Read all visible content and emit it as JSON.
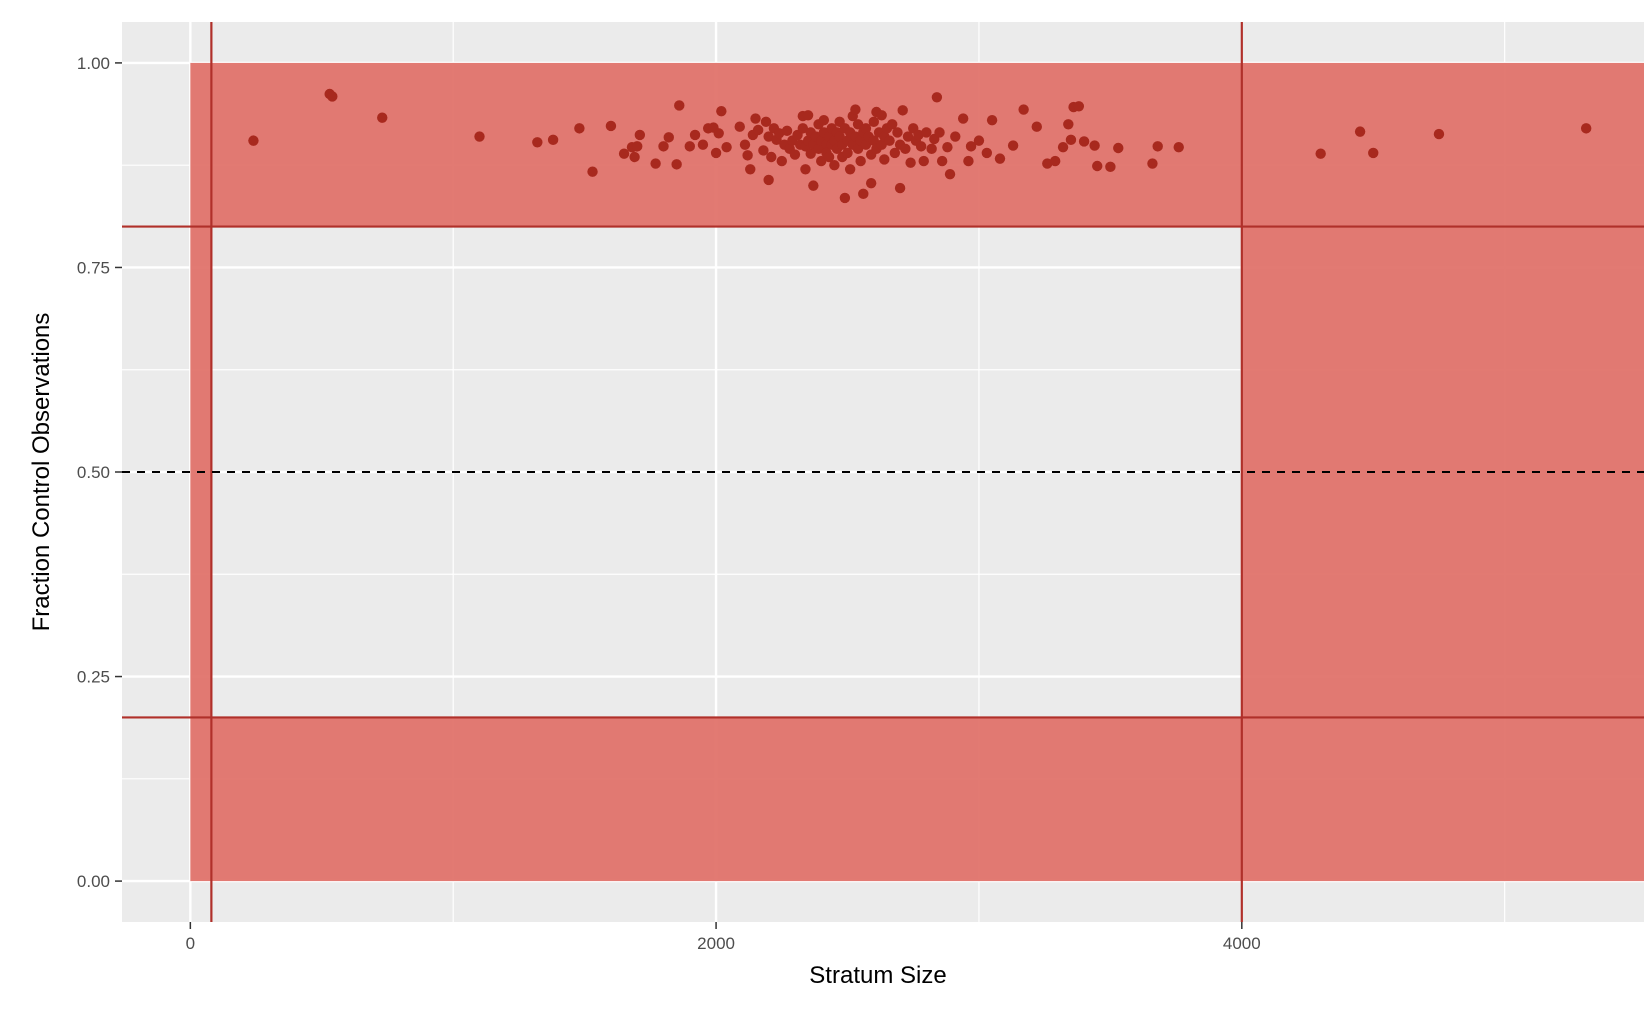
{
  "chart_data": {
    "type": "scatter",
    "title": "",
    "xlabel": "Stratum Size",
    "ylabel": "Fraction Control Observations",
    "xlim": [
      -260,
      5530
    ],
    "ylim": [
      -0.05,
      1.05
    ],
    "x_ticks": [
      0,
      2000,
      4000
    ],
    "x_tick_labels": [
      "0",
      "2000",
      "4000"
    ],
    "y_ticks": [
      0,
      0.25,
      0.5,
      0.75,
      1.0
    ],
    "y_tick_labels": [
      "0.00",
      "0.25",
      "0.50",
      "0.75",
      "1.00"
    ],
    "grid": true,
    "legend": "none",
    "colors": {
      "panel": "#ebebeb",
      "grid": "#ffffff",
      "shade": "#e0736c",
      "line": "#b0302a",
      "point": "#a8291e",
      "dashed": "#000000"
    },
    "shaded_regions": [
      {
        "x": [
          0,
          5530
        ],
        "y": [
          0.8,
          1.0
        ]
      },
      {
        "x": [
          0,
          5530
        ],
        "y": [
          0.0,
          0.2
        ]
      },
      {
        "x": [
          0,
          80
        ],
        "y": [
          0.2,
          0.8
        ]
      },
      {
        "x": [
          4000,
          5530
        ],
        "y": [
          0.2,
          0.8
        ]
      }
    ],
    "reference_lines": {
      "vertical": [
        80,
        4000
      ],
      "horizontal": [
        0.2,
        0.8
      ],
      "dashed_horizontal": [
        0.5
      ]
    },
    "points": [
      [
        240,
        0.905
      ],
      [
        530,
        0.962
      ],
      [
        540,
        0.959
      ],
      [
        730,
        0.933
      ],
      [
        1100,
        0.91
      ],
      [
        1320,
        0.903
      ],
      [
        1380,
        0.906
      ],
      [
        1480,
        0.92
      ],
      [
        1530,
        0.867
      ],
      [
        1600,
        0.923
      ],
      [
        1650,
        0.889
      ],
      [
        1680,
        0.897
      ],
      [
        1690,
        0.885
      ],
      [
        1700,
        0.898
      ],
      [
        1710,
        0.912
      ],
      [
        1770,
        0.877
      ],
      [
        1800,
        0.898
      ],
      [
        1820,
        0.909
      ],
      [
        1850,
        0.876
      ],
      [
        1860,
        0.948
      ],
      [
        1900,
        0.898
      ],
      [
        1920,
        0.912
      ],
      [
        1950,
        0.9
      ],
      [
        1970,
        0.92
      ],
      [
        1990,
        0.921
      ],
      [
        2000,
        0.89
      ],
      [
        2010,
        0.914
      ],
      [
        2020,
        0.941
      ],
      [
        2040,
        0.897
      ],
      [
        2090,
        0.922
      ],
      [
        2110,
        0.9
      ],
      [
        2120,
        0.887
      ],
      [
        2130,
        0.87
      ],
      [
        2140,
        0.912
      ],
      [
        2150,
        0.932
      ],
      [
        2160,
        0.918
      ],
      [
        2180,
        0.893
      ],
      [
        2190,
        0.928
      ],
      [
        2200,
        0.91
      ],
      [
        2200,
        0.857
      ],
      [
        2210,
        0.885
      ],
      [
        2220,
        0.92
      ],
      [
        2230,
        0.906
      ],
      [
        2240,
        0.914
      ],
      [
        2250,
        0.88
      ],
      [
        2260,
        0.9
      ],
      [
        2270,
        0.917
      ],
      [
        2280,
        0.895
      ],
      [
        2290,
        0.905
      ],
      [
        2300,
        0.888
      ],
      [
        2310,
        0.912
      ],
      [
        2320,
        0.9
      ],
      [
        2330,
        0.92
      ],
      [
        2330,
        0.935
      ],
      [
        2340,
        0.898
      ],
      [
        2340,
        0.87
      ],
      [
        2350,
        0.936
      ],
      [
        2350,
        0.905
      ],
      [
        2360,
        0.915
      ],
      [
        2360,
        0.889
      ],
      [
        2370,
        0.85
      ],
      [
        2370,
        0.9
      ],
      [
        2380,
        0.91
      ],
      [
        2390,
        0.925
      ],
      [
        2390,
        0.895
      ],
      [
        2400,
        0.905
      ],
      [
        2400,
        0.88
      ],
      [
        2410,
        0.915
      ],
      [
        2410,
        0.93
      ],
      [
        2420,
        0.9
      ],
      [
        2420,
        0.89
      ],
      [
        2430,
        0.91
      ],
      [
        2430,
        0.885
      ],
      [
        2440,
        0.92
      ],
      [
        2440,
        0.9
      ],
      [
        2450,
        0.905
      ],
      [
        2450,
        0.875
      ],
      [
        2460,
        0.915
      ],
      [
        2460,
        0.895
      ],
      [
        2470,
        0.91
      ],
      [
        2470,
        0.928
      ],
      [
        2480,
        0.9
      ],
      [
        2480,
        0.885
      ],
      [
        2490,
        0.92
      ],
      [
        2490,
        0.835
      ],
      [
        2500,
        0.905
      ],
      [
        2500,
        0.89
      ],
      [
        2510,
        0.915
      ],
      [
        2510,
        0.87
      ],
      [
        2520,
        0.9
      ],
      [
        2520,
        0.935
      ],
      [
        2530,
        0.91
      ],
      [
        2530,
        0.943
      ],
      [
        2540,
        0.895
      ],
      [
        2540,
        0.925
      ],
      [
        2550,
        0.905
      ],
      [
        2550,
        0.88
      ],
      [
        2560,
        0.915
      ],
      [
        2560,
        0.84
      ],
      [
        2570,
        0.9
      ],
      [
        2570,
        0.92
      ],
      [
        2580,
        0.91
      ],
      [
        2590,
        0.888
      ],
      [
        2590,
        0.853
      ],
      [
        2600,
        0.905
      ],
      [
        2600,
        0.928
      ],
      [
        2610,
        0.895
      ],
      [
        2610,
        0.94
      ],
      [
        2620,
        0.915
      ],
      [
        2630,
        0.9
      ],
      [
        2630,
        0.936
      ],
      [
        2640,
        0.91
      ],
      [
        2640,
        0.882
      ],
      [
        2650,
        0.92
      ],
      [
        2660,
        0.905
      ],
      [
        2670,
        0.925
      ],
      [
        2680,
        0.89
      ],
      [
        2690,
        0.915
      ],
      [
        2700,
        0.9
      ],
      [
        2700,
        0.847
      ],
      [
        2710,
        0.942
      ],
      [
        2720,
        0.895
      ],
      [
        2730,
        0.91
      ],
      [
        2740,
        0.878
      ],
      [
        2750,
        0.92
      ],
      [
        2760,
        0.905
      ],
      [
        2770,
        0.912
      ],
      [
        2780,
        0.898
      ],
      [
        2790,
        0.88
      ],
      [
        2800,
        0.915
      ],
      [
        2820,
        0.895
      ],
      [
        2830,
        0.907
      ],
      [
        2840,
        0.958
      ],
      [
        2850,
        0.915
      ],
      [
        2860,
        0.88
      ],
      [
        2880,
        0.897
      ],
      [
        2890,
        0.864
      ],
      [
        2910,
        0.91
      ],
      [
        2940,
        0.932
      ],
      [
        2960,
        0.88
      ],
      [
        2970,
        0.898
      ],
      [
        3000,
        0.905
      ],
      [
        3030,
        0.89
      ],
      [
        3050,
        0.93
      ],
      [
        3080,
        0.883
      ],
      [
        3130,
        0.899
      ],
      [
        3170,
        0.943
      ],
      [
        3220,
        0.922
      ],
      [
        3260,
        0.877
      ],
      [
        3290,
        0.88
      ],
      [
        3320,
        0.897
      ],
      [
        3340,
        0.925
      ],
      [
        3350,
        0.906
      ],
      [
        3360,
        0.946
      ],
      [
        3380,
        0.947
      ],
      [
        3400,
        0.904
      ],
      [
        3440,
        0.899
      ],
      [
        3450,
        0.874
      ],
      [
        3500,
        0.873
      ],
      [
        3530,
        0.896
      ],
      [
        3660,
        0.877
      ],
      [
        3680,
        0.898
      ],
      [
        3760,
        0.897
      ],
      [
        4300,
        0.889
      ],
      [
        4450,
        0.916
      ],
      [
        4500,
        0.89
      ],
      [
        4750,
        0.913
      ],
      [
        5310,
        0.92
      ]
    ]
  }
}
